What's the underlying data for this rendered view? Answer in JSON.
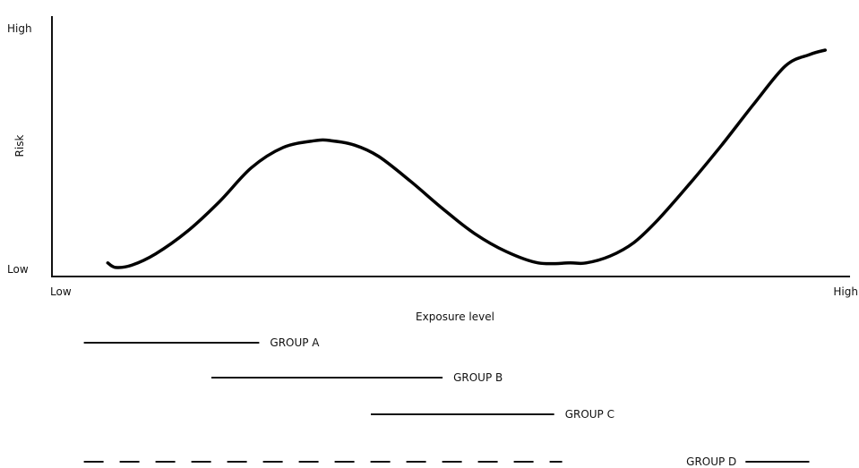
{
  "chart_data": {
    "type": "line",
    "xlabel": "Exposure level",
    "ylabel": "Risk",
    "x_ticks": [
      "Low",
      "High"
    ],
    "y_ticks": [
      "Low",
      "High"
    ],
    "xlim": [
      0,
      100
    ],
    "ylim": [
      0,
      100
    ],
    "grid": false,
    "series": [
      {
        "x": [
          7,
          8,
          10,
          13,
          17,
          21,
          25,
          29,
          33,
          35,
          38,
          41,
          45,
          49,
          53,
          57,
          61,
          65,
          67,
          70,
          73,
          76,
          80,
          84,
          88,
          92,
          95,
          97
        ],
        "y": [
          6,
          4,
          5,
          10,
          20,
          33,
          48,
          57,
          60,
          60,
          58,
          53,
          42,
          30,
          19,
          11,
          6,
          6,
          6,
          9,
          15,
          25,
          41,
          58,
          76,
          93,
          98,
          100
        ]
      }
    ],
    "ranges": [
      {
        "label": "GROUP A",
        "start": 4,
        "end": 26,
        "style": "solid"
      },
      {
        "label": "GROUP B",
        "start": 20,
        "end": 49,
        "style": "solid"
      },
      {
        "label": "GROUP C",
        "start": 40,
        "end": 63,
        "style": "solid"
      },
      {
        "label": "GROUP D",
        "start": 4,
        "end": 64,
        "style": "dashed",
        "label_suffix_line": [
          87,
          95
        ]
      }
    ]
  }
}
